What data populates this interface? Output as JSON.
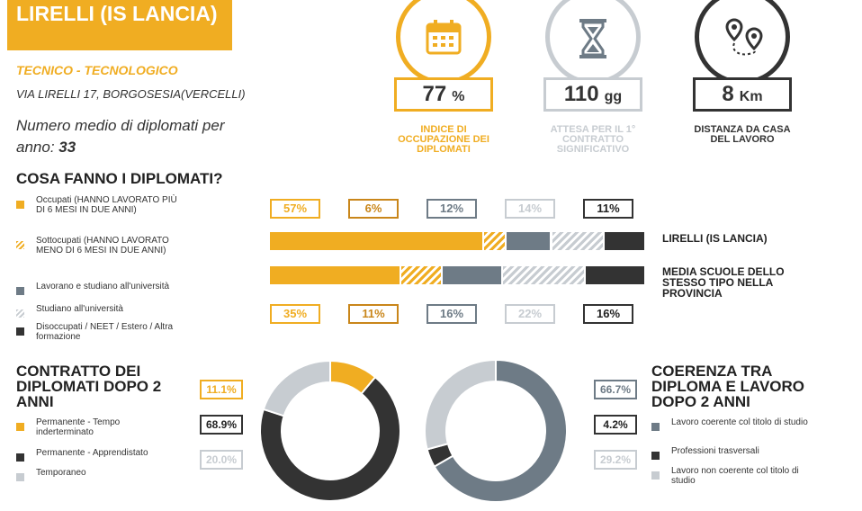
{
  "school": {
    "name": "LIRELLI (IS LANCIA)",
    "type": "TECNICO - TECNOLOGICO",
    "address": "VIA LIRELLI 17, BORGOSESIA(VERCELLI)",
    "avg_label": "Numero medio di diplomati per anno:",
    "avg_value": "33"
  },
  "kpis": [
    {
      "value": "77",
      "unit": "%",
      "label": "INDICE DI OCCUPAZIONE DEI DIPLOMATI",
      "color": "#f0ad22",
      "icon": "calendar-icon"
    },
    {
      "value": "110",
      "unit": "gg",
      "label": "ATTESA PER IL 1° CONTRATTO SIGNIFICATIVO",
      "color": "#c7ccd1",
      "icon": "hourglass-icon"
    },
    {
      "value": "8",
      "unit": "Km",
      "label": "DISTANZA DA CASA DEL LAVORO",
      "color": "#333333",
      "icon": "route-pins-icon"
    }
  ],
  "section1": {
    "title": "COSA FANNO I DIPLOMATI?",
    "legend": [
      {
        "label": "Occupati (HANNO LAVORATO PIÙ DI 6 MESI IN DUE ANNI)",
        "color": "#f0ad22",
        "pattern": "solid"
      },
      {
        "label": "Sottocupati (HANNO LAVORATO MENO DI 6 MESI IN DUE ANNI)",
        "color": "#f0ad22",
        "pattern": "striped"
      },
      {
        "label": "Lavorano e studiano all'università",
        "color": "#6e7b86",
        "pattern": "solid"
      },
      {
        "label": "Studiano all'università",
        "color": "#c7ccd1",
        "pattern": "striped"
      },
      {
        "label": "Disoccupati / NEET / Estero / Altra formazione",
        "color": "#333333",
        "pattern": "solid"
      }
    ],
    "row_labels": [
      "LIRELLI (IS LANCIA)",
      "MEDIA SCUOLE DELLO STESSO TIPO NELLA PROVINCIA"
    ]
  },
  "section2": {
    "title": "CONTRATTO DEI DIPLOMATI DOPO 2 ANNI",
    "legend": [
      {
        "label": "Permanente - Tempo inderterminato",
        "color": "#f0ad22"
      },
      {
        "label": "Permanente - Apprendistato",
        "color": "#333333"
      },
      {
        "label": "Temporaneo",
        "color": "#c7ccd1"
      }
    ]
  },
  "section3": {
    "title": "COERENZA TRA DIPLOMA E LAVORO DOPO 2 ANNI",
    "legend": [
      {
        "label": "Lavoro coerente col titolo di studio",
        "color": "#6e7b86"
      },
      {
        "label": "Professioni trasversali",
        "color": "#333333"
      },
      {
        "label": "Lavoro non coerente col titolo di studio",
        "color": "#c7ccd1"
      }
    ]
  },
  "chart_data": [
    {
      "type": "bar",
      "stacked": true,
      "orientation": "horizontal",
      "categories": [
        "LIRELLI (IS LANCIA)",
        "MEDIA SCUOLE DELLO STESSO TIPO NELLA PROVINCIA"
      ],
      "series": [
        {
          "name": "Occupati",
          "values": [
            57,
            35
          ],
          "labels": [
            "57%",
            "35%"
          ],
          "color": "#f0ad22",
          "pattern": "solid"
        },
        {
          "name": "Sottocupati",
          "values": [
            6,
            11
          ],
          "labels": [
            "6%",
            "11%"
          ],
          "color": "#f0ad22",
          "pattern": "striped"
        },
        {
          "name": "Lavorano e studiano all'università",
          "values": [
            12,
            16
          ],
          "labels": [
            "12%",
            "16%"
          ],
          "color": "#6e7b86",
          "pattern": "solid"
        },
        {
          "name": "Studiano all'università",
          "values": [
            14,
            22
          ],
          "labels": [
            "14%",
            "22%"
          ],
          "color": "#c7ccd1",
          "pattern": "striped"
        },
        {
          "name": "Disoccupati / NEET / Estero / Altra formazione",
          "values": [
            11,
            16
          ],
          "labels": [
            "11%",
            "16%"
          ],
          "color": "#333333",
          "pattern": "solid"
        }
      ]
    },
    {
      "type": "pie",
      "donut": true,
      "title": "CONTRATTO DEI DIPLOMATI DOPO 2 ANNI",
      "slices": [
        {
          "name": "Permanente - Tempo inderterminato",
          "value": 11.1,
          "label": "11.1%",
          "color": "#f0ad22"
        },
        {
          "name": "Permanente - Apprendistato",
          "value": 68.9,
          "label": "68.9%",
          "color": "#333333"
        },
        {
          "name": "Temporaneo",
          "value": 20.0,
          "label": "20.0%",
          "color": "#c7ccd1"
        }
      ]
    },
    {
      "type": "pie",
      "donut": true,
      "title": "COERENZA TRA DIPLOMA E LAVORO DOPO 2 ANNI",
      "slices": [
        {
          "name": "Lavoro coerente col titolo di studio",
          "value": 66.7,
          "label": "66.7%",
          "color": "#6e7b86"
        },
        {
          "name": "Professioni trasversali",
          "value": 4.2,
          "label": "4.2%",
          "color": "#333333"
        },
        {
          "name": "Lavoro non coerente col titolo di studio",
          "value": 29.2,
          "label": "29.2%",
          "color": "#c7ccd1"
        }
      ]
    }
  ]
}
